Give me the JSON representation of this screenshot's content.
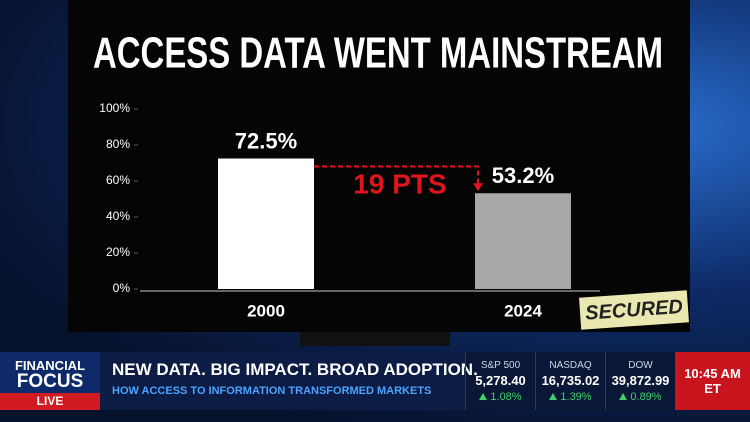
{
  "chart_data": {
    "type": "bar",
    "title": "ACCESS DATA WENT MAINSTREAM",
    "categories": [
      "2000",
      "2024"
    ],
    "values": [
      72.5,
      53.2
    ],
    "value_labels": [
      "72.5%",
      "53.2%"
    ],
    "colors": [
      "#ffffff",
      "#a8a8a8"
    ],
    "ylim": [
      0,
      100
    ],
    "yticks": [
      {
        "value": 0,
        "label": "0%"
      },
      {
        "value": 20,
        "label": "20%"
      },
      {
        "value": 40,
        "label": "40%"
      },
      {
        "value": 60,
        "label": "60%"
      },
      {
        "value": 80,
        "label": "80%"
      },
      {
        "value": 100,
        "label": "100%"
      }
    ],
    "grid": false,
    "annotation": "19 PTS",
    "badge": "SECURED"
  },
  "ticker": {
    "brand_top": "FINANCIAL",
    "brand_bottom": "FOCUS",
    "live": "LIVE",
    "headline": "NEW DATA. BIG IMPACT. BROAD ADOPTION.",
    "subheadline": "HOW ACCESS TO INFORMATION TRANSFORMED MARKETS",
    "indices": [
      {
        "name": "S&P 500",
        "level": "5,278.40",
        "change": "1.08%"
      },
      {
        "name": "NASDAQ",
        "level": "16,735.02",
        "change": "1.39%"
      },
      {
        "name": "DOW",
        "level": "39,872.99",
        "change": "0.89%"
      }
    ],
    "time": "10:45 AM",
    "zone": "ET"
  }
}
